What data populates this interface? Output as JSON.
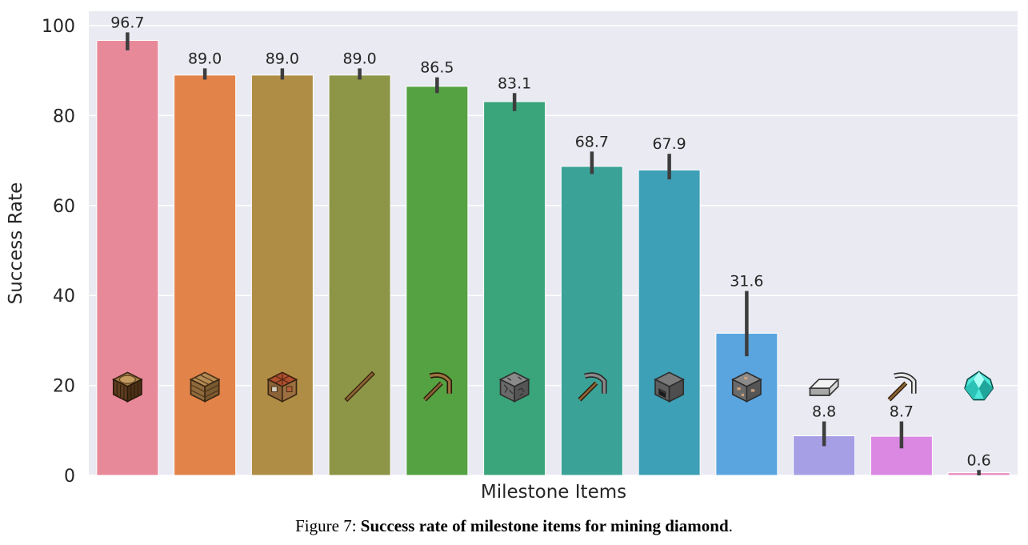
{
  "chart_data": {
    "type": "bar",
    "xlabel": "Milestone Items",
    "ylabel": "Success Rate",
    "ylim": [
      0,
      103
    ],
    "yticks": [
      0,
      20,
      40,
      60,
      80,
      100
    ],
    "grid": true,
    "values": [
      96.7,
      89.0,
      89.0,
      89.0,
      86.5,
      83.1,
      68.7,
      67.9,
      31.6,
      8.8,
      8.7,
      0.6
    ],
    "value_labels": [
      "96.7",
      "89.0",
      "89.0",
      "89.0",
      "86.5",
      "83.1",
      "68.7",
      "67.9",
      "31.6",
      "8.8",
      "8.7",
      "0.6"
    ],
    "error_low": [
      94.5,
      88.0,
      88.0,
      88.0,
      85.0,
      81.0,
      67.0,
      65.8,
      26.5,
      6.5,
      6.0,
      0.0
    ],
    "error_high": [
      98.5,
      90.5,
      90.5,
      90.5,
      88.5,
      85.0,
      72.0,
      71.5,
      41.0,
      12.0,
      12.0,
      1.2
    ],
    "colors": [
      "#e8899a",
      "#e2834a",
      "#b08d45",
      "#8d9547",
      "#55a243",
      "#3aa57a",
      "#3ba297",
      "#3ea0b6",
      "#5aa5df",
      "#a79fe6",
      "#da88e2",
      "#ea8bc2"
    ],
    "item_icons": [
      "oak-log-icon",
      "planks-icon",
      "crafting-table-icon",
      "stick-icon",
      "wooden-pickaxe-icon",
      "cobblestone-icon",
      "stone-pickaxe-icon",
      "furnace-icon",
      "iron-ore-icon",
      "iron-ingot-icon",
      "iron-pickaxe-icon",
      "diamond-icon"
    ]
  },
  "caption": {
    "prefix": "Figure 7: ",
    "bold": "Success rate of milestone items for mining diamond",
    "suffix": "."
  }
}
